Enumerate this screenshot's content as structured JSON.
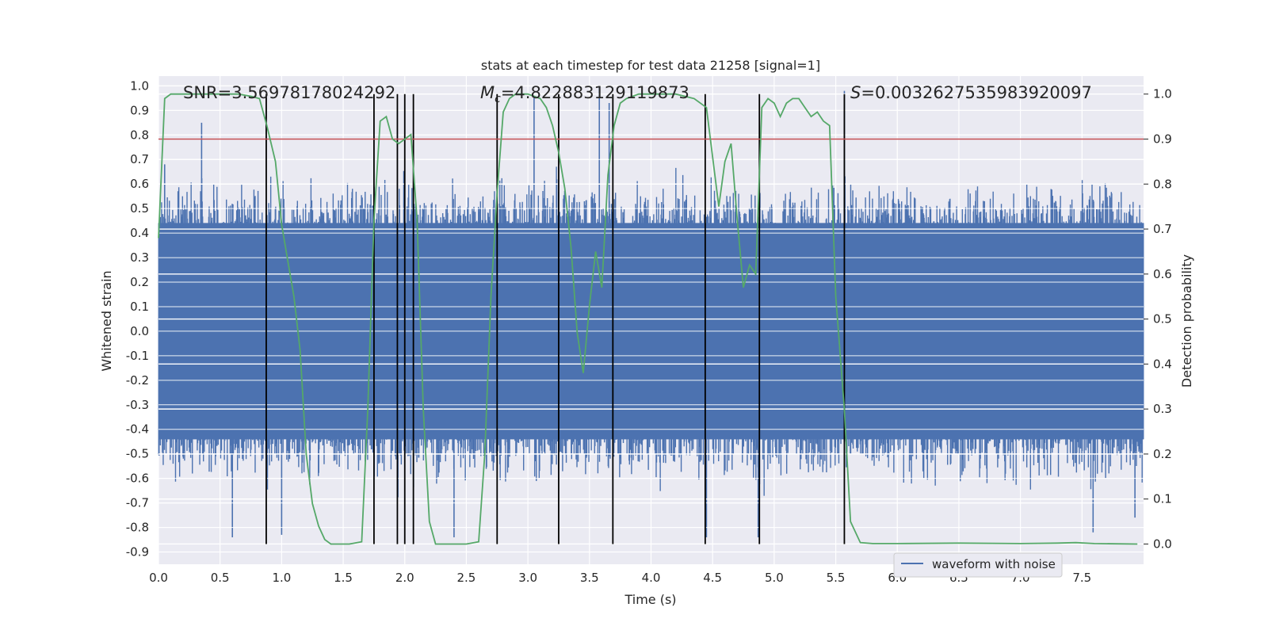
{
  "chart_data": {
    "type": "line",
    "title": "stats at each timestep for test data 21258 [signal=1]",
    "xlabel": "Time (s)",
    "ylabel": "Whitened strain",
    "y2label": "Detection probability",
    "xlim": [
      0.0,
      8.0
    ],
    "ylim": [
      -0.95,
      1.04
    ],
    "y2lim": [
      -0.045,
      1.04
    ],
    "x_ticks": [
      "0.0",
      "0.5",
      "1.0",
      "1.5",
      "2.0",
      "2.5",
      "3.0",
      "3.5",
      "4.0",
      "4.5",
      "5.0",
      "5.5",
      "6.0",
      "6.5",
      "7.0",
      "7.5"
    ],
    "y_ticks": [
      "1.0",
      "0.9",
      "0.8",
      "0.7",
      "0.6",
      "0.5",
      "0.4",
      "0.3",
      "0.2",
      "0.1",
      "0.0",
      "-0.1",
      "-0.2",
      "-0.3",
      "-0.4",
      "-0.5",
      "-0.6",
      "-0.7",
      "-0.8",
      "-0.9"
    ],
    "y2_ticks": [
      "1.0",
      "0.9",
      "0.8",
      "0.7",
      "0.6",
      "0.5",
      "0.4",
      "0.3",
      "0.2",
      "0.1",
      "0.0"
    ],
    "annotations": {
      "snr": "SNR=3.56978178024292",
      "mc_symbol": "M",
      "mc_sub": "c",
      "mc_value": "=4.822883129119873",
      "s_symbol": "S",
      "s_value": "=0.0032627535983920097"
    },
    "threshold": 0.9,
    "vertical_lines": [
      0.875,
      1.75,
      1.94,
      2.0,
      2.07,
      2.75,
      3.25,
      3.69,
      4.44,
      4.88,
      5.57
    ],
    "legend": {
      "label": "waveform with noise",
      "position": "lower-center-right"
    },
    "series": [
      {
        "name": "waveform with noise",
        "axis": "left",
        "description": "dense whitened strain noise, amplitude mostly within ±0.45 with spikes to ±0.85",
        "typical_range": [
          -0.45,
          0.45
        ],
        "peaks": [
          [
            0.05,
            0.68
          ],
          [
            0.35,
            0.85
          ],
          [
            0.6,
            -0.84
          ],
          [
            1.0,
            -0.83
          ],
          [
            2.4,
            -0.84
          ],
          [
            3.05,
            0.95
          ],
          [
            3.58,
            1.0
          ],
          [
            3.66,
            0.93
          ],
          [
            4.45,
            -0.84
          ],
          [
            4.87,
            -0.84
          ],
          [
            5.57,
            0.98
          ],
          [
            7.59,
            -0.82
          ],
          [
            7.93,
            -0.76
          ]
        ]
      },
      {
        "name": "Detection probability",
        "axis": "right",
        "x": [
          0.0,
          0.05,
          0.1,
          0.2,
          0.35,
          0.5,
          0.65,
          0.75,
          0.82,
          0.88,
          0.95,
          1.0,
          1.05,
          1.1,
          1.15,
          1.2,
          1.25,
          1.3,
          1.35,
          1.4,
          1.45,
          1.55,
          1.65,
          1.7,
          1.75,
          1.8,
          1.85,
          1.9,
          1.95,
          2.0,
          2.05,
          2.1,
          2.15,
          2.2,
          2.25,
          2.3,
          2.4,
          2.5,
          2.6,
          2.65,
          2.7,
          2.75,
          2.8,
          2.85,
          2.9,
          3.0,
          3.1,
          3.15,
          3.2,
          3.25,
          3.3,
          3.35,
          3.4,
          3.45,
          3.5,
          3.55,
          3.6,
          3.65,
          3.7,
          3.75,
          3.8,
          3.9,
          4.0,
          4.2,
          4.35,
          4.45,
          4.5,
          4.55,
          4.6,
          4.65,
          4.7,
          4.75,
          4.8,
          4.85,
          4.9,
          4.95,
          5.0,
          5.05,
          5.1,
          5.15,
          5.2,
          5.25,
          5.3,
          5.35,
          5.4,
          5.45,
          5.5,
          5.57,
          5.62,
          5.7,
          5.8,
          6.0,
          6.5,
          7.0,
          7.3,
          7.45,
          7.6,
          7.95
        ],
        "values": [
          0.68,
          0.99,
          1.0,
          1.0,
          1.0,
          1.0,
          1.0,
          0.995,
          0.99,
          0.93,
          0.85,
          0.71,
          0.63,
          0.55,
          0.43,
          0.2,
          0.09,
          0.04,
          0.01,
          0.0,
          0.0,
          0.0,
          0.005,
          0.3,
          0.72,
          0.94,
          0.95,
          0.9,
          0.89,
          0.9,
          0.91,
          0.72,
          0.3,
          0.05,
          0.0,
          0.0,
          0.0,
          0.0,
          0.005,
          0.2,
          0.55,
          0.78,
          0.96,
          0.99,
          1.0,
          1.0,
          0.99,
          0.97,
          0.93,
          0.87,
          0.79,
          0.66,
          0.47,
          0.38,
          0.53,
          0.65,
          0.57,
          0.82,
          0.93,
          0.98,
          0.99,
          1.0,
          1.0,
          1.0,
          0.99,
          0.97,
          0.86,
          0.75,
          0.85,
          0.89,
          0.72,
          0.57,
          0.62,
          0.6,
          0.97,
          0.99,
          0.98,
          0.95,
          0.98,
          0.99,
          0.99,
          0.97,
          0.95,
          0.96,
          0.94,
          0.93,
          0.55,
          0.3,
          0.05,
          0.003,
          0.001,
          0.001,
          0.002,
          0.001,
          0.002,
          0.003,
          0.001,
          0.0
        ]
      }
    ]
  }
}
